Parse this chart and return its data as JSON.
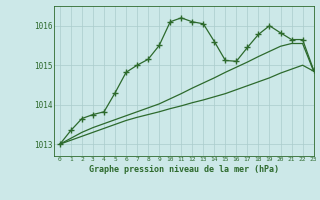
{
  "background_color": "#cce8e8",
  "plot_bg_color": "#cce8e8",
  "grid_color": "#aacccc",
  "line_color": "#2d6a2d",
  "title": "Graphe pression niveau de la mer (hPa)",
  "xlim": [
    -0.5,
    23
  ],
  "ylim": [
    1012.7,
    1016.5
  ],
  "yticks": [
    1013,
    1014,
    1015,
    1016
  ],
  "xticks": [
    0,
    1,
    2,
    3,
    4,
    5,
    6,
    7,
    8,
    9,
    10,
    11,
    12,
    13,
    14,
    15,
    16,
    17,
    18,
    19,
    20,
    21,
    22,
    23
  ],
  "series": [
    {
      "x": [
        0,
        1,
        2,
        3,
        4,
        5,
        6,
        7,
        8,
        9,
        10,
        11,
        12,
        13,
        14,
        15,
        16,
        17,
        18,
        19,
        20,
        21,
        22,
        23
      ],
      "y": [
        1013.0,
        1013.1,
        1013.2,
        1013.3,
        1013.4,
        1013.5,
        1013.6,
        1013.68,
        1013.75,
        1013.82,
        1013.9,
        1013.97,
        1014.05,
        1014.12,
        1014.2,
        1014.28,
        1014.38,
        1014.48,
        1014.58,
        1014.68,
        1014.8,
        1014.9,
        1015.0,
        1014.85
      ],
      "marker": null,
      "linewidth": 0.9,
      "linestyle": "-"
    },
    {
      "x": [
        0,
        1,
        2,
        3,
        4,
        5,
        6,
        7,
        8,
        9,
        10,
        11,
        12,
        13,
        14,
        15,
        16,
        17,
        18,
        19,
        20,
        21,
        22,
        23
      ],
      "y": [
        1013.0,
        1013.15,
        1013.3,
        1013.42,
        1013.52,
        1013.62,
        1013.72,
        1013.82,
        1013.92,
        1014.02,
        1014.15,
        1014.28,
        1014.42,
        1014.55,
        1014.68,
        1014.82,
        1014.95,
        1015.08,
        1015.22,
        1015.35,
        1015.48,
        1015.55,
        1015.55,
        1014.85
      ],
      "marker": null,
      "linewidth": 0.9,
      "linestyle": "-"
    },
    {
      "x": [
        0,
        1,
        2,
        3,
        4,
        5,
        6,
        7,
        8,
        9,
        10,
        11,
        12,
        13,
        14,
        15,
        16,
        17,
        18,
        19,
        20,
        21,
        22,
        23
      ],
      "y": [
        1013.0,
        1013.35,
        1013.65,
        1013.75,
        1013.82,
        1014.3,
        1014.82,
        1015.0,
        1015.15,
        1015.5,
        1016.1,
        1016.2,
        1016.1,
        1016.05,
        1015.6,
        1015.12,
        1015.1,
        1015.45,
        1015.78,
        1016.0,
        1015.82,
        1015.65,
        1015.65,
        1014.88
      ],
      "marker": "+",
      "markersize": 4,
      "markeredgewidth": 1.0,
      "linewidth": 0.9,
      "linestyle": "-"
    }
  ]
}
